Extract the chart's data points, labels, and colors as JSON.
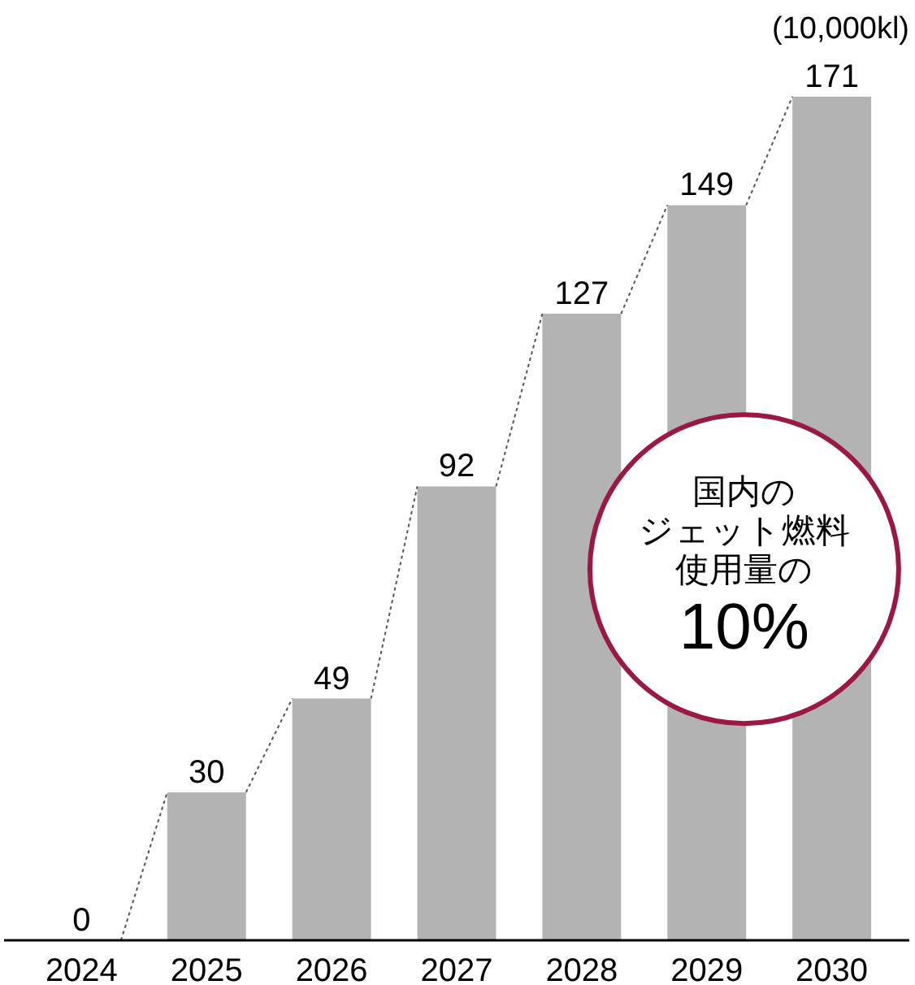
{
  "chart_data": {
    "type": "bar",
    "ylabel": "(10,000kl)",
    "categories": [
      "2024",
      "2025",
      "2026",
      "2027",
      "2028",
      "2029",
      "2030"
    ],
    "values": [
      0,
      30,
      49,
      92,
      127,
      149,
      171
    ],
    "color": "#b3b3b3",
    "data_labels": true,
    "annotations": [
      "国内の",
      "ジェット燃料",
      "使用量の",
      "10%"
    ]
  }
}
